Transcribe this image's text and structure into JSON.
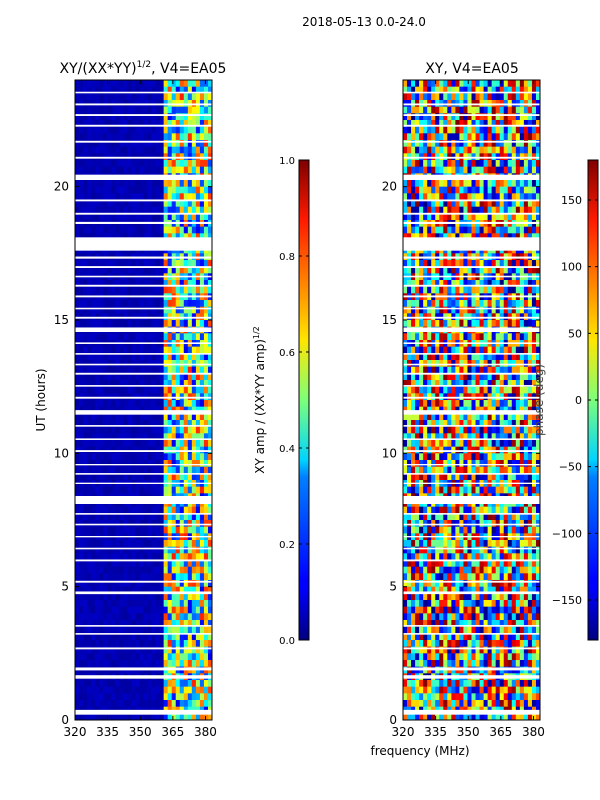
{
  "figure_title": "2018-05-13 0.0-24.0",
  "shared_xlabel": "frequency (MHz)",
  "chart_data": [
    {
      "type": "heatmap",
      "title_main": "XY/(XX*YY)",
      "title_exp": "1/2",
      "title_rest": ", V4=EA05",
      "xlabel": "",
      "ylabel": "UT (hours)",
      "xlim": [
        320,
        383
      ],
      "ylim": [
        0,
        24
      ],
      "x_ticks": [
        320,
        335,
        350,
        365,
        380
      ],
      "y_ticks": [
        0,
        5,
        10,
        15,
        20
      ],
      "colormap": "jet",
      "colorbar": {
        "label_main": "XY amp / (XX*YY amp)",
        "label_exp": "1/2",
        "range": [
          0.0,
          1.0
        ],
        "ticks": [
          0.0,
          0.2,
          0.4,
          0.6,
          0.8,
          1.0
        ],
        "tick_labels": [
          "0.0",
          "0.2",
          "0.4",
          "0.6",
          "0.8",
          "1.0"
        ]
      },
      "pattern": {
        "low_band_mhz": [
          320,
          360
        ],
        "low_band_value": 0.03,
        "active_band_mhz": [
          360,
          383
        ],
        "active_band_value_range": [
          0.1,
          0.85
        ]
      }
    },
    {
      "type": "heatmap",
      "title": "XY, V4=EA05",
      "xlabel": "",
      "ylabel": "",
      "xlim": [
        320,
        383
      ],
      "ylim": [
        0,
        24
      ],
      "x_ticks": [
        320,
        335,
        350,
        365,
        380
      ],
      "y_ticks": [
        0,
        5,
        10,
        15,
        20
      ],
      "colormap": "jet",
      "colorbar": {
        "label": "phase (deg)",
        "range": [
          -180,
          180
        ],
        "ticks": [
          -150,
          -100,
          -50,
          0,
          50,
          100,
          150
        ],
        "tick_labels": [
          "−150",
          "−100",
          "−50",
          "0",
          "50",
          "100",
          "150"
        ]
      },
      "pattern": {
        "value_range": [
          -180,
          180
        ],
        "description_values": "random phase per time-frequency cell"
      }
    }
  ],
  "flagged_ut_gaps_hours": [
    [
      0.2,
      0.38
    ],
    [
      1.55,
      1.68
    ],
    [
      1.86,
      1.97
    ],
    [
      2.65,
      2.72
    ],
    [
      3.2,
      3.26
    ],
    [
      3.5,
      3.56
    ],
    [
      4.72,
      4.82
    ],
    [
      5.15,
      5.22
    ],
    [
      5.95,
      6.02
    ],
    [
      6.4,
      6.46
    ],
    [
      6.85,
      6.9
    ],
    [
      7.3,
      7.36
    ],
    [
      7.7,
      7.76
    ],
    [
      8.1,
      8.4
    ],
    [
      8.85,
      8.9
    ],
    [
      9.2,
      9.26
    ],
    [
      9.55,
      9.6
    ],
    [
      10.05,
      10.12
    ],
    [
      10.5,
      10.56
    ],
    [
      11.0,
      11.06
    ],
    [
      11.45,
      11.62
    ],
    [
      12.05,
      12.12
    ],
    [
      12.5,
      12.56
    ],
    [
      12.95,
      13.02
    ],
    [
      13.3,
      13.36
    ],
    [
      13.7,
      13.76
    ],
    [
      14.1,
      14.16
    ],
    [
      14.55,
      14.72
    ],
    [
      15.05,
      15.12
    ],
    [
      15.4,
      15.46
    ],
    [
      15.85,
      15.92
    ],
    [
      16.25,
      16.32
    ],
    [
      16.6,
      16.66
    ],
    [
      16.95,
      17.02
    ],
    [
      17.3,
      17.38
    ],
    [
      17.6,
      18.1
    ],
    [
      18.6,
      18.68
    ],
    [
      18.95,
      19.02
    ],
    [
      19.45,
      19.52
    ],
    [
      20.25,
      20.45
    ],
    [
      21.05,
      21.12
    ],
    [
      21.65,
      21.72
    ],
    [
      22.25,
      22.32
    ],
    [
      22.65,
      22.72
    ],
    [
      23.05,
      23.12
    ],
    [
      23.5,
      23.56
    ]
  ]
}
